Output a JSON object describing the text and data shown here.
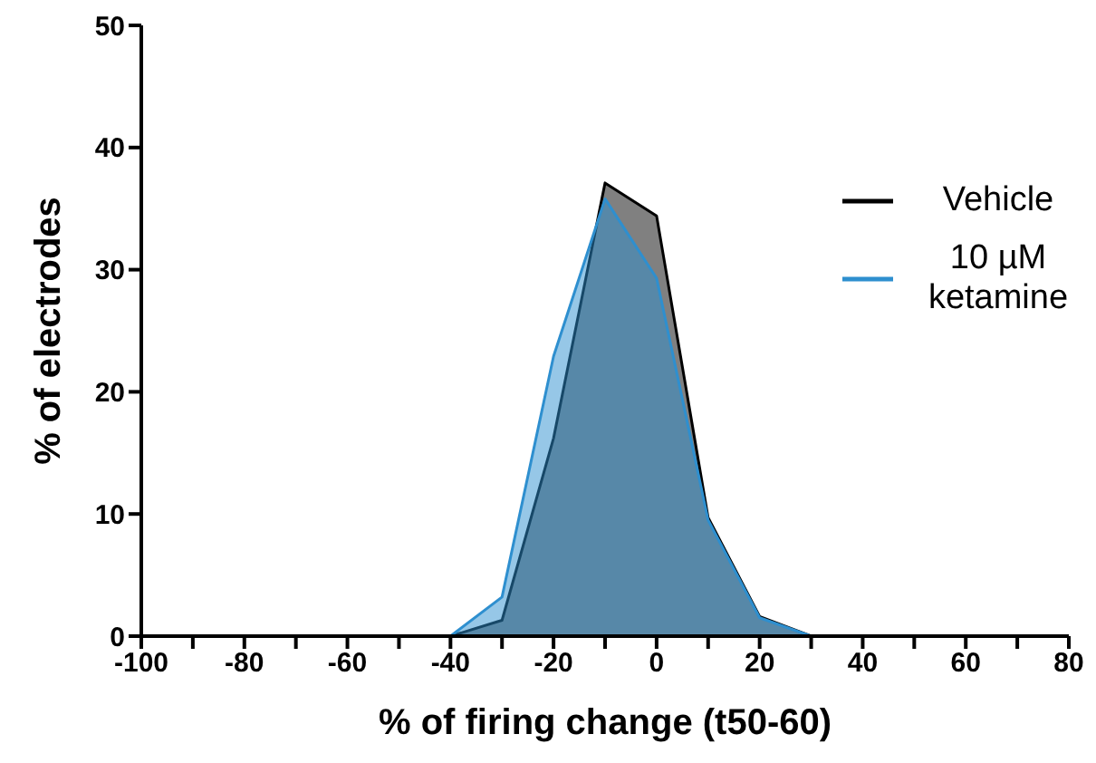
{
  "chart_data": {
    "type": "area",
    "xlabel": "% of firing change (t50-60)",
    "ylabel": "% of electrodes",
    "x": [
      -100,
      -90,
      -80,
      -70,
      -60,
      -50,
      -40,
      -30,
      -20,
      -10,
      0,
      10,
      20,
      30,
      40,
      50,
      60,
      70,
      80
    ],
    "series": [
      {
        "name": "Vehicle",
        "color": "#000000",
        "values": [
          0,
          0,
          0,
          0,
          0,
          0,
          0,
          1.3,
          16.2,
          37.1,
          34.4,
          9.7,
          1.6,
          0,
          0,
          0,
          0,
          0,
          0
        ]
      },
      {
        "name": "10 µM ketamine",
        "color": "#2e8fcf",
        "values": [
          0,
          0,
          0,
          0,
          0,
          0,
          0,
          3.2,
          22.9,
          35.8,
          29.3,
          9.5,
          1.5,
          0,
          0,
          0,
          0,
          0,
          0
        ]
      }
    ],
    "xlim": [
      -100,
      80
    ],
    "xticks": [
      -100,
      {
        "value": -90,
        "label": null
      },
      -80,
      {
        "value": -70,
        "label": null
      },
      -60,
      {
        "value": -50,
        "label": null
      },
      -40,
      {
        "value": -30,
        "label": null
      },
      -20,
      {
        "value": -10,
        "label": null
      },
      0,
      {
        "value": 10,
        "label": null
      },
      20,
      {
        "value": 30,
        "label": null
      },
      40,
      {
        "value": 50,
        "label": null
      },
      60,
      {
        "value": 70,
        "label": null
      },
      80
    ],
    "ylim": [
      0,
      50
    ],
    "yticks": [
      0,
      10,
      20,
      30,
      40,
      50
    ],
    "grid": false,
    "legend": "right"
  }
}
